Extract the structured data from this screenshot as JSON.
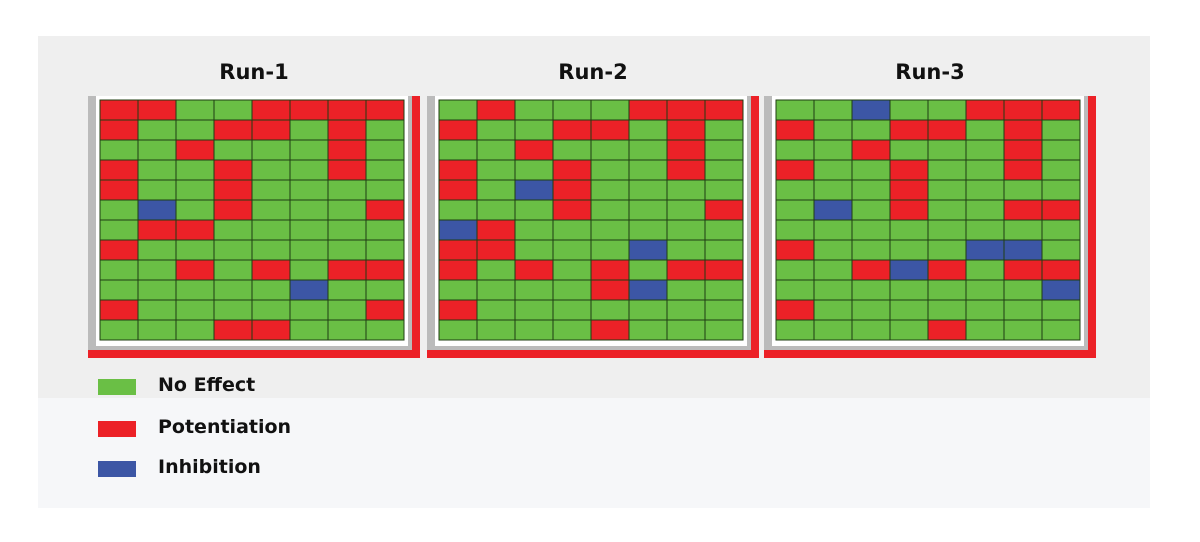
{
  "chart_data": {
    "type": "heatmap",
    "colors": {
      "no_effect": "#6abf45",
      "potentiation": "#ec2127",
      "inhibition": "#3c56a5",
      "grid_line": "#1f3d12"
    },
    "legend": [
      {
        "key": "N",
        "label": "No Effect",
        "color": "#6abf45"
      },
      {
        "key": "P",
        "label": "Potentiation",
        "color": "#ec2127"
      },
      {
        "key": "I",
        "label": "Inhibition",
        "color": "#3c56a5"
      }
    ],
    "rows": 12,
    "cols": 8,
    "runs": [
      {
        "title": "Run-1",
        "grid": [
          [
            "P",
            "P",
            "N",
            "N",
            "P",
            "P",
            "P",
            "P"
          ],
          [
            "P",
            "N",
            "N",
            "P",
            "P",
            "N",
            "P",
            "N"
          ],
          [
            "N",
            "N",
            "P",
            "N",
            "N",
            "N",
            "P",
            "N"
          ],
          [
            "P",
            "N",
            "N",
            "P",
            "N",
            "N",
            "P",
            "N"
          ],
          [
            "P",
            "N",
            "N",
            "P",
            "N",
            "N",
            "N",
            "N"
          ],
          [
            "N",
            "I",
            "N",
            "P",
            "N",
            "N",
            "N",
            "P"
          ],
          [
            "N",
            "P",
            "P",
            "N",
            "N",
            "N",
            "N",
            "N"
          ],
          [
            "P",
            "N",
            "N",
            "N",
            "N",
            "N",
            "N",
            "N"
          ],
          [
            "N",
            "N",
            "P",
            "N",
            "P",
            "N",
            "P",
            "P"
          ],
          [
            "N",
            "N",
            "N",
            "N",
            "N",
            "I",
            "N",
            "N"
          ],
          [
            "P",
            "N",
            "N",
            "N",
            "N",
            "N",
            "N",
            "P"
          ],
          [
            "N",
            "N",
            "N",
            "P",
            "P",
            "N",
            "N",
            "N"
          ]
        ]
      },
      {
        "title": "Run-2",
        "grid": [
          [
            "N",
            "P",
            "N",
            "N",
            "N",
            "P",
            "P",
            "P"
          ],
          [
            "P",
            "N",
            "N",
            "P",
            "P",
            "N",
            "P",
            "N"
          ],
          [
            "N",
            "N",
            "P",
            "N",
            "N",
            "N",
            "P",
            "N"
          ],
          [
            "P",
            "N",
            "N",
            "P",
            "N",
            "N",
            "P",
            "N"
          ],
          [
            "P",
            "N",
            "I",
            "P",
            "N",
            "N",
            "N",
            "N"
          ],
          [
            "N",
            "N",
            "N",
            "P",
            "N",
            "N",
            "N",
            "P"
          ],
          [
            "I",
            "P",
            "N",
            "N",
            "N",
            "N",
            "N",
            "N"
          ],
          [
            "P",
            "P",
            "N",
            "N",
            "N",
            "I",
            "N",
            "N"
          ],
          [
            "P",
            "N",
            "P",
            "N",
            "P",
            "N",
            "P",
            "P"
          ],
          [
            "N",
            "N",
            "N",
            "N",
            "P",
            "I",
            "N",
            "N"
          ],
          [
            "P",
            "N",
            "N",
            "N",
            "N",
            "N",
            "N",
            "N"
          ],
          [
            "N",
            "N",
            "N",
            "N",
            "P",
            "N",
            "N",
            "N"
          ]
        ]
      },
      {
        "title": "Run-3",
        "grid": [
          [
            "N",
            "N",
            "I",
            "N",
            "N",
            "P",
            "P",
            "P"
          ],
          [
            "P",
            "N",
            "N",
            "P",
            "P",
            "N",
            "P",
            "N"
          ],
          [
            "N",
            "N",
            "P",
            "N",
            "N",
            "N",
            "P",
            "N"
          ],
          [
            "P",
            "N",
            "N",
            "P",
            "N",
            "N",
            "P",
            "N"
          ],
          [
            "N",
            "N",
            "N",
            "P",
            "N",
            "N",
            "N",
            "N"
          ],
          [
            "N",
            "I",
            "N",
            "P",
            "N",
            "N",
            "P",
            "P"
          ],
          [
            "N",
            "N",
            "N",
            "N",
            "N",
            "N",
            "N",
            "N"
          ],
          [
            "P",
            "N",
            "N",
            "N",
            "N",
            "I",
            "I",
            "N"
          ],
          [
            "N",
            "N",
            "P",
            "I",
            "P",
            "N",
            "P",
            "P"
          ],
          [
            "N",
            "N",
            "N",
            "N",
            "N",
            "N",
            "N",
            "I"
          ],
          [
            "P",
            "N",
            "N",
            "N",
            "N",
            "N",
            "N",
            "N"
          ],
          [
            "N",
            "N",
            "N",
            "N",
            "P",
            "N",
            "N",
            "N"
          ]
        ]
      }
    ]
  }
}
